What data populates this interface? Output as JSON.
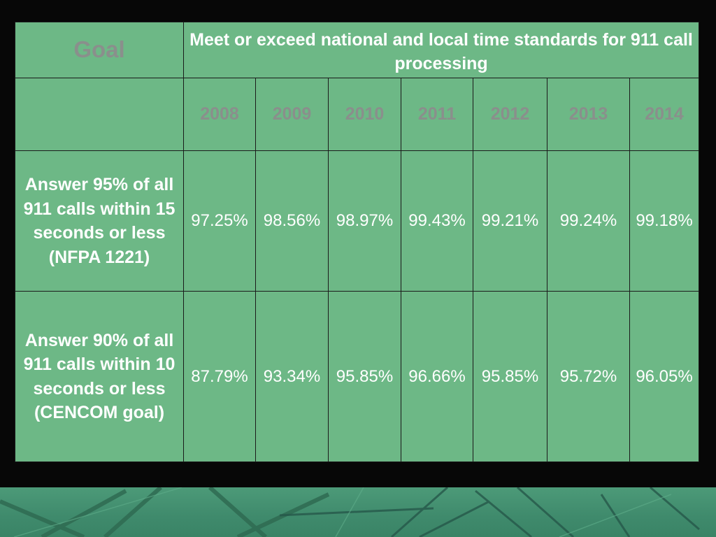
{
  "table": {
    "goal_label": "Goal",
    "goal_text": "Meet or exceed national and local time standards for 911 call processing",
    "years": [
      "2008",
      "2009",
      "2010",
      "2011",
      "2012",
      "2013",
      "2014"
    ],
    "rows": [
      {
        "label": "Answer 95% of all 911 calls within 15 seconds or less (NFPA 1221)",
        "values": [
          "97.25%",
          "98.56%",
          "98.97%",
          "99.43%",
          "99.21%",
          "99.24%",
          "99.18%"
        ]
      },
      {
        "label": "Answer 90% of all 911 calls within 10 seconds or less (CENCOM goal)",
        "values": [
          "87.79%",
          "93.34%",
          "95.85%",
          "96.66%",
          "95.85%",
          "95.72%",
          "96.05%"
        ]
      }
    ]
  },
  "colors": {
    "table_fill": "#6db886",
    "grid_line": "#1a1a1a",
    "muted_text": "#8a8f8c",
    "light_text": "#ffffff",
    "background": "#070707",
    "photo_tint": "#4c9a78"
  },
  "decoration": {
    "bottom_image": "radio-tower-photo"
  }
}
